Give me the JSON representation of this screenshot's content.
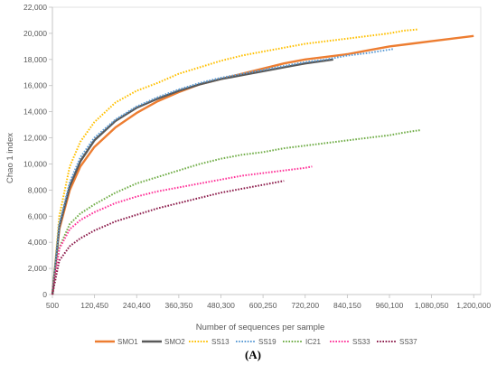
{
  "panel_label": "(A)",
  "chart_data": {
    "type": "line",
    "title": "",
    "xlabel": "Number of sequences per sample",
    "ylabel": "Chao 1 index",
    "xlim": [
      500,
      1220000
    ],
    "ylim": [
      0,
      22000
    ],
    "x_ticks": [
      500,
      120450,
      240400,
      360350,
      480300,
      600250,
      720200,
      840150,
      960100,
      1080050,
      1200000
    ],
    "x_tick_labels": [
      "500",
      "120,450",
      "240,400",
      "360,350",
      "480,300",
      "600,250",
      "720,200",
      "840,150",
      "960,100",
      "1,080,050",
      "1,200,000"
    ],
    "y_ticks": [
      0,
      2000,
      4000,
      6000,
      8000,
      10000,
      12000,
      14000,
      16000,
      18000,
      20000,
      22000
    ],
    "y_tick_labels": [
      "0",
      "2,000",
      "4,000",
      "6,000",
      "8,000",
      "10,000",
      "12,000",
      "14,000",
      "16,000",
      "18,000",
      "20,000",
      "22,000"
    ],
    "grid": false,
    "legend_position": "bottom",
    "series": [
      {
        "name": "SMO1",
        "color": "#ED7D31",
        "style": "solid",
        "x": [
          500,
          20000,
          50000,
          80000,
          120000,
          180000,
          240000,
          300000,
          360000,
          420000,
          480000,
          540000,
          600000,
          660000,
          720000,
          780000,
          840000,
          900000,
          960000,
          1020000,
          1080000,
          1140000,
          1200000
        ],
        "y": [
          0,
          5000,
          8000,
          9800,
          11300,
          12800,
          13900,
          14800,
          15500,
          16100,
          16500,
          16900,
          17300,
          17700,
          18000,
          18200,
          18400,
          18700,
          19000,
          19200,
          19400,
          19600,
          19800
        ]
      },
      {
        "name": "SMO2",
        "color": "#595959",
        "style": "solid",
        "x": [
          500,
          20000,
          50000,
          80000,
          120000,
          180000,
          240000,
          300000,
          360000,
          420000,
          480000,
          540000,
          600000,
          660000,
          720000,
          800000
        ],
        "y": [
          0,
          5200,
          8300,
          10200,
          11800,
          13300,
          14300,
          15000,
          15600,
          16100,
          16500,
          16800,
          17100,
          17400,
          17700,
          18000
        ]
      },
      {
        "name": "SS13",
        "color": "#FFC000",
        "style": "dotted",
        "x": [
          500,
          20000,
          50000,
          80000,
          120000,
          180000,
          240000,
          300000,
          360000,
          420000,
          480000,
          540000,
          600000,
          660000,
          720000,
          780000,
          840000,
          900000,
          960000,
          1000000,
          1040000
        ],
        "y": [
          0,
          6000,
          9800,
          11700,
          13200,
          14700,
          15600,
          16200,
          16900,
          17400,
          17900,
          18300,
          18600,
          18900,
          19200,
          19400,
          19600,
          19800,
          20000,
          20200,
          20300
        ]
      },
      {
        "name": "SS19",
        "color": "#5B9BD5",
        "style": "dotted",
        "x": [
          500,
          20000,
          50000,
          80000,
          120000,
          180000,
          240000,
          300000,
          360000,
          420000,
          480000,
          540000,
          600000,
          660000,
          720000,
          780000,
          840000,
          900000,
          970000
        ],
        "y": [
          0,
          5400,
          8600,
          10500,
          12000,
          13400,
          14400,
          15100,
          15700,
          16200,
          16600,
          16900,
          17200,
          17500,
          17800,
          18000,
          18300,
          18500,
          18800
        ]
      },
      {
        "name": "IC21",
        "color": "#70AD47",
        "style": "dotted",
        "x": [
          500,
          20000,
          50000,
          80000,
          120000,
          180000,
          240000,
          300000,
          360000,
          420000,
          480000,
          540000,
          600000,
          660000,
          720000,
          780000,
          840000,
          900000,
          960000,
          1000000,
          1050000
        ],
        "y": [
          0,
          3600,
          5400,
          6200,
          6900,
          7800,
          8500,
          9000,
          9500,
          10000,
          10400,
          10700,
          10900,
          11200,
          11400,
          11600,
          11800,
          12000,
          12200,
          12400,
          12600
        ]
      },
      {
        "name": "SS33",
        "color": "#FF3399",
        "style": "dotted",
        "x": [
          500,
          20000,
          50000,
          80000,
          120000,
          180000,
          240000,
          300000,
          360000,
          420000,
          480000,
          540000,
          600000,
          660000,
          720000,
          740000
        ],
        "y": [
          0,
          3500,
          5000,
          5700,
          6300,
          7000,
          7500,
          7900,
          8200,
          8500,
          8800,
          9100,
          9300,
          9500,
          9700,
          9800
        ]
      },
      {
        "name": "SS37",
        "color": "#8B1A4A",
        "style": "dotted",
        "x": [
          500,
          20000,
          50000,
          80000,
          120000,
          180000,
          240000,
          300000,
          360000,
          420000,
          480000,
          540000,
          600000,
          660000
        ],
        "y": [
          0,
          2600,
          3700,
          4300,
          4900,
          5600,
          6100,
          6600,
          7000,
          7400,
          7800,
          8100,
          8400,
          8700
        ]
      }
    ]
  }
}
